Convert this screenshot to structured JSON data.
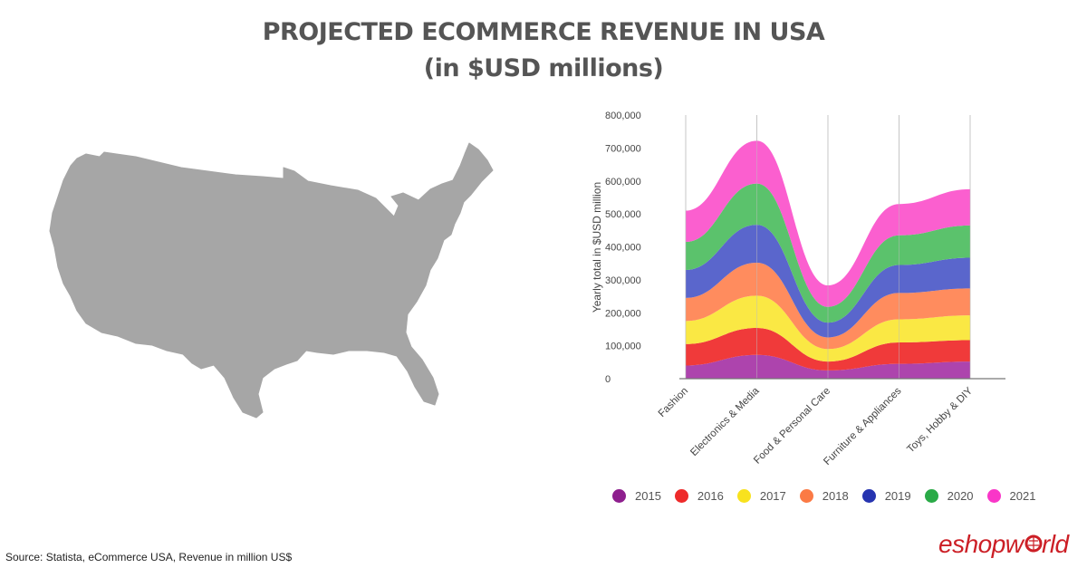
{
  "title": {
    "line1": "PROJECTED ECOMMERCE REVENUE IN USA",
    "line2": "(in $USD millions)"
  },
  "source": "Source: Statista, eCommerce USA, Revenue in million US$",
  "brand": "eshopworld",
  "map": {
    "icon": "usa-map-icon",
    "color": "#a6a6a6"
  },
  "chart_data": {
    "type": "area",
    "title": "",
    "xlabel": "",
    "ylabel": "Yearly total in $USD million",
    "ylim": [
      0,
      800000
    ],
    "yticks": [
      "0",
      "100,000",
      "200,000",
      "300,000",
      "400,000",
      "500,000",
      "600,000",
      "700,000",
      "800,000"
    ],
    "categories": [
      "Fashion",
      "Electronics & Media",
      "Food & Personal Care",
      "Furniture & Appliances",
      "Toys, Hobby & DIY"
    ],
    "grid": "vertical",
    "legend_position": "bottom",
    "series": [
      {
        "name": "2015",
        "color": "#ad44ad",
        "values": [
          40000,
          72000,
          25000,
          45000,
          52000
        ]
      },
      {
        "name": "2016",
        "color": "#f03a3a",
        "values": [
          65000,
          82000,
          27000,
          65000,
          65000
        ]
      },
      {
        "name": "2017",
        "color": "#fae844",
        "values": [
          70000,
          98000,
          38000,
          70000,
          75000
        ]
      },
      {
        "name": "2018",
        "color": "#ff8c5e",
        "values": [
          70000,
          100000,
          35000,
          80000,
          82000
        ]
      },
      {
        "name": "2019",
        "color": "#5a66cc",
        "values": [
          85000,
          115000,
          45000,
          85000,
          93000
        ]
      },
      {
        "name": "2020",
        "color": "#5bc26c",
        "values": [
          85000,
          125000,
          48000,
          90000,
          98000
        ]
      },
      {
        "name": "2021",
        "color": "#fb5fcf",
        "values": [
          95000,
          130000,
          65000,
          95000,
          110000
        ]
      }
    ]
  },
  "legend": [
    {
      "label": "2015",
      "color": "#8e1f8e"
    },
    {
      "label": "2016",
      "color": "#ee2a2a"
    },
    {
      "label": "2017",
      "color": "#f8e21e"
    },
    {
      "label": "2018",
      "color": "#fb7a45"
    },
    {
      "label": "2019",
      "color": "#2634b0"
    },
    {
      "label": "2020",
      "color": "#2aaa47"
    },
    {
      "label": "2021",
      "color": "#f936c8"
    }
  ]
}
